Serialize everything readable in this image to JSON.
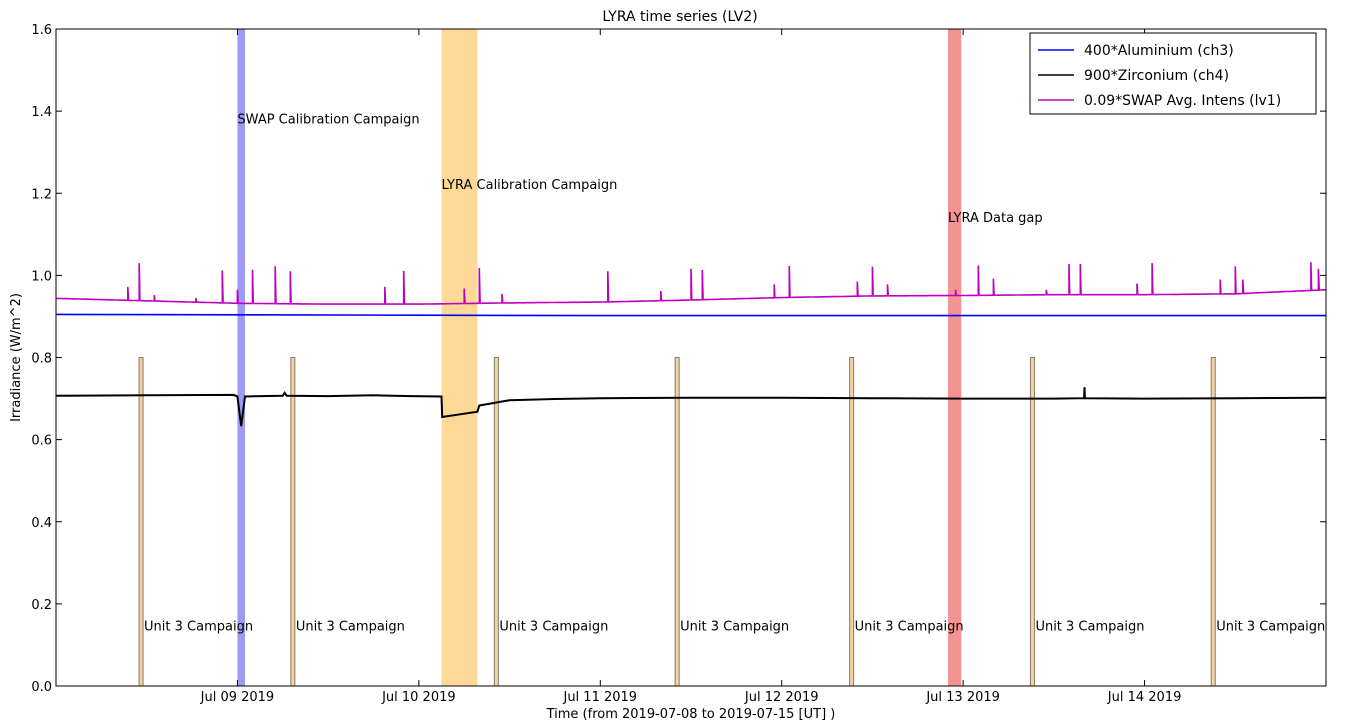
{
  "chart_data": {
    "type": "line",
    "title": "LYRA time series (LV2)",
    "xlabel": "Time (from 2019-07-08 to 2019-07-15 [UT] )",
    "ylabel": "Irradiance (W/m^2)",
    "xlim": [
      "2019-07-08 00:00",
      "2019-07-15 00:00"
    ],
    "ylim": [
      0.0,
      1.6
    ],
    "yticks": [
      0.0,
      0.2,
      0.4,
      0.6,
      0.8,
      1.0,
      1.2,
      1.4,
      1.6
    ],
    "ytick_labels": [
      "0.0",
      "0.2",
      "0.4",
      "0.6",
      "0.8",
      "1.0",
      "1.2",
      "1.4",
      "1.6"
    ],
    "xticks": [
      {
        "t": "2019-07-09 00:00",
        "label": "Jul 09 2019"
      },
      {
        "t": "2019-07-10 00:00",
        "label": "Jul 10 2019"
      },
      {
        "t": "2019-07-11 00:00",
        "label": "Jul 11 2019"
      },
      {
        "t": "2019-07-12 00:00",
        "label": "Jul 12 2019"
      },
      {
        "t": "2019-07-13 00:00",
        "label": "Jul 13 2019"
      },
      {
        "t": "2019-07-14 00:00",
        "label": "Jul 14 2019"
      }
    ],
    "legend_position": "top-right",
    "grid": false,
    "series": [
      {
        "name": "400*Aluminium (ch3)",
        "color": "#0000ff",
        "points": [
          [
            "2019-07-08 00:00",
            0.905
          ],
          [
            "2019-07-09 00:00",
            0.904
          ],
          [
            "2019-07-10 00:00",
            0.903
          ],
          [
            "2019-07-11 00:00",
            0.902
          ],
          [
            "2019-07-12 00:00",
            0.902
          ],
          [
            "2019-07-13 00:00",
            0.902
          ],
          [
            "2019-07-14 00:00",
            0.902
          ],
          [
            "2019-07-15 00:00",
            0.902
          ]
        ]
      },
      {
        "name": "900*Zirconium (ch4)",
        "color": "#000000",
        "points": [
          [
            "2019-07-08 00:00",
            0.707
          ],
          [
            "2019-07-08 12:00",
            0.708
          ],
          [
            "2019-07-08 23:30",
            0.709
          ],
          [
            "2019-07-09 00:00",
            0.705
          ],
          [
            "2019-07-09 00:30",
            0.633
          ],
          [
            "2019-07-09 01:00",
            0.705
          ],
          [
            "2019-07-09 06:00",
            0.707
          ],
          [
            "2019-07-09 06:15",
            0.714
          ],
          [
            "2019-07-09 06:30",
            0.707
          ],
          [
            "2019-07-09 12:00",
            0.706
          ],
          [
            "2019-07-09 18:00",
            0.708
          ],
          [
            "2019-07-09 23:00",
            0.706
          ],
          [
            "2019-07-10 03:00",
            0.705
          ],
          [
            "2019-07-10 03:05",
            0.655
          ],
          [
            "2019-07-10 07:45",
            0.668
          ],
          [
            "2019-07-10 08:00",
            0.683
          ],
          [
            "2019-07-10 12:00",
            0.696
          ],
          [
            "2019-07-10 18:00",
            0.699
          ],
          [
            "2019-07-11 00:00",
            0.701
          ],
          [
            "2019-07-11 12:00",
            0.702
          ],
          [
            "2019-07-12 00:00",
            0.702
          ],
          [
            "2019-07-12 12:00",
            0.701
          ],
          [
            "2019-07-13 00:00",
            0.7
          ],
          [
            "2019-07-13 12:00",
            0.7
          ],
          [
            "2019-07-13 16:00",
            0.701
          ],
          [
            "2019-07-13 16:03",
            0.728
          ],
          [
            "2019-07-13 16:06",
            0.701
          ],
          [
            "2019-07-14 00:00",
            0.7
          ],
          [
            "2019-07-14 12:00",
            0.701
          ],
          [
            "2019-07-15 00:00",
            0.702
          ]
        ]
      },
      {
        "name": "0.09*SWAP Avg. Intens (lv1)",
        "color": "#bf00bf",
        "baseline": [
          [
            "2019-07-08 00:00",
            0.944
          ],
          [
            "2019-07-08 12:00",
            0.938
          ],
          [
            "2019-07-09 00:00",
            0.932
          ],
          [
            "2019-07-09 12:00",
            0.93
          ],
          [
            "2019-07-10 00:00",
            0.93
          ],
          [
            "2019-07-10 12:00",
            0.933
          ],
          [
            "2019-07-11 00:00",
            0.935
          ],
          [
            "2019-07-11 12:00",
            0.94
          ],
          [
            "2019-07-12 00:00",
            0.946
          ],
          [
            "2019-07-12 12:00",
            0.95
          ],
          [
            "2019-07-13 00:00",
            0.951
          ],
          [
            "2019-07-13 12:00",
            0.953
          ],
          [
            "2019-07-14 00:00",
            0.953
          ],
          [
            "2019-07-14 12:00",
            0.955
          ],
          [
            "2019-07-14 18:00",
            0.96
          ],
          [
            "2019-07-15 00:00",
            0.965
          ]
        ],
        "spikes": [
          [
            "2019-07-08 09:30",
            0.972
          ],
          [
            "2019-07-08 11:00",
            1.03
          ],
          [
            "2019-07-08 13:00",
            0.952
          ],
          [
            "2019-07-08 18:30",
            0.945
          ],
          [
            "2019-07-08 22:00",
            1.012
          ],
          [
            "2019-07-09 00:00",
            0.965
          ],
          [
            "2019-07-09 02:00",
            1.014
          ],
          [
            "2019-07-09 05:00",
            1.022
          ],
          [
            "2019-07-09 07:00",
            1.01
          ],
          [
            "2019-07-09 19:30",
            0.972
          ],
          [
            "2019-07-09 22:00",
            1.011
          ],
          [
            "2019-07-10 06:00",
            0.968
          ],
          [
            "2019-07-10 08:00",
            1.018
          ],
          [
            "2019-07-10 11:00",
            0.955
          ],
          [
            "2019-07-11 01:00",
            1.01
          ],
          [
            "2019-07-11 08:00",
            0.962
          ],
          [
            "2019-07-11 12:00",
            1.016
          ],
          [
            "2019-07-11 13:30",
            1.013
          ],
          [
            "2019-07-11 23:00",
            0.978
          ],
          [
            "2019-07-12 01:00",
            1.023
          ],
          [
            "2019-07-12 10:00",
            0.985
          ],
          [
            "2019-07-12 12:00",
            1.021
          ],
          [
            "2019-07-12 14:00",
            0.978
          ],
          [
            "2019-07-12 23:00",
            0.965
          ],
          [
            "2019-07-13 02:00",
            1.024
          ],
          [
            "2019-07-13 04:00",
            0.992
          ],
          [
            "2019-07-13 11:00",
            0.965
          ],
          [
            "2019-07-13 14:00",
            1.028
          ],
          [
            "2019-07-13 15:30",
            1.028
          ],
          [
            "2019-07-13 23:00",
            0.98
          ],
          [
            "2019-07-14 01:00",
            1.03
          ],
          [
            "2019-07-14 10:00",
            0.99
          ],
          [
            "2019-07-14 12:00",
            1.022
          ],
          [
            "2019-07-14 13:00",
            0.99
          ],
          [
            "2019-07-14 22:00",
            1.032
          ],
          [
            "2019-07-14 23:00",
            1.016
          ]
        ]
      }
    ],
    "shaded_regions": [
      {
        "label": "SWAP Calibration Campaign",
        "start": "2019-07-09 00:00",
        "end": "2019-07-09 01:00",
        "color": "#6666ee",
        "alpha": 0.65,
        "label_y": 1.37
      },
      {
        "label": "LYRA Calibration Campaign",
        "start": "2019-07-10 03:00",
        "end": "2019-07-10 07:45",
        "color": "#fdbe50",
        "alpha": 0.6,
        "label_y": 1.21
      },
      {
        "label": "LYRA Data gap",
        "start": "2019-07-12 22:00",
        "end": "2019-07-12 23:45",
        "color": "#ef4b4b",
        "alpha": 0.6,
        "label_y": 1.13
      }
    ],
    "unit_campaigns": {
      "label": "Unit 3 Campaign",
      "height": 0.8,
      "color": "#f2d3a3",
      "edge_color": "#8a7a60",
      "label_y": 0.135,
      "times": [
        "2019-07-08 11:15",
        "2019-07-09 07:20",
        "2019-07-10 10:15",
        "2019-07-11 10:10",
        "2019-07-12 09:15",
        "2019-07-13 09:10",
        "2019-07-14 09:05"
      ]
    }
  }
}
